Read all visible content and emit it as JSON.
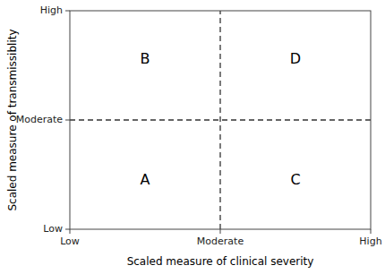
{
  "chart_data": {
    "type": "quadrant",
    "xlabel": "Scaled measure of clinical severity",
    "ylabel": "Scaled measure of transmissiblity",
    "xlim": [
      0,
      2
    ],
    "ylim": [
      0,
      2
    ],
    "xticks": [
      {
        "value": 0,
        "label": "Low"
      },
      {
        "value": 1,
        "label": "Moderate"
      },
      {
        "value": 2,
        "label": "High"
      }
    ],
    "yticks": [
      {
        "value": 0,
        "label": "Low"
      },
      {
        "value": 1,
        "label": "Moderate"
      },
      {
        "value": 2,
        "label": "High"
      }
    ],
    "vlines": [
      1.0
    ],
    "hlines": [
      1.0
    ],
    "annotations": [
      {
        "text": "A",
        "x": 0.5,
        "y": 0.45
      },
      {
        "text": "B",
        "x": 0.5,
        "y": 1.55
      },
      {
        "text": "C",
        "x": 1.5,
        "y": 0.45
      },
      {
        "text": "D",
        "x": 1.5,
        "y": 1.55
      }
    ]
  }
}
